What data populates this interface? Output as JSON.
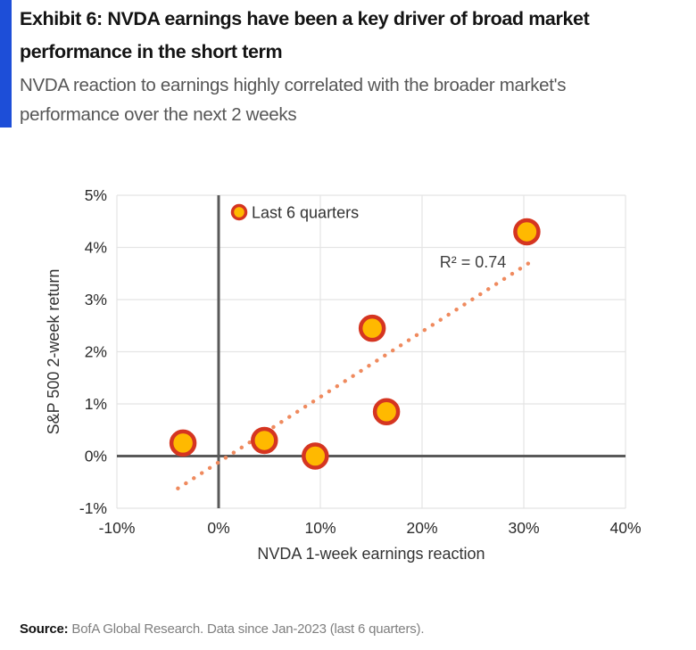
{
  "header": {
    "title_line1": "Exhibit 6: NVDA earnings have been a key driver of broad market",
    "title_line2": "performance in the short term",
    "subtitle_line1": "NVDA reaction to earnings highly correlated with the broader market's",
    "subtitle_line2": "performance over the next 2 weeks"
  },
  "chart_data": {
    "type": "scatter",
    "title": "",
    "xlabel": "NVDA 1-week earnings reaction",
    "ylabel": "S&P 500 2-week return",
    "xlim": [
      -10,
      40
    ],
    "ylim": [
      -1,
      5
    ],
    "x_tick_values": [
      -10,
      0,
      10,
      20,
      30,
      40
    ],
    "x_tick_labels": [
      "-10%",
      "0%",
      "10%",
      "20%",
      "30%",
      "40%"
    ],
    "y_tick_values": [
      5,
      4,
      3,
      2,
      1,
      0,
      -1
    ],
    "y_tick_labels": [
      "5%",
      "4%",
      "3%",
      "2%",
      "1%",
      "0%",
      "-1%"
    ],
    "grid": true,
    "legend": {
      "label": "Last 6 quarters",
      "position": "top-left-inside"
    },
    "series": [
      {
        "name": "Last 6 quarters",
        "points": [
          {
            "x": -3.5,
            "y": 0.25
          },
          {
            "x": 4.5,
            "y": 0.3
          },
          {
            "x": 9.5,
            "y": 0.0
          },
          {
            "x": 15.1,
            "y": 2.45
          },
          {
            "x": 16.5,
            "y": 0.85
          },
          {
            "x": 30.3,
            "y": 4.3
          }
        ]
      }
    ],
    "trendline": {
      "x1": -4,
      "y1": -0.62,
      "x2": 30.5,
      "y2": 3.7,
      "style": "dotted"
    },
    "annotation": {
      "text": "R² = 0.74",
      "x": 25.0,
      "y": 3.72
    }
  },
  "footer": {
    "source_label": "Source:",
    "source_text": " BofA Global Research. Data since Jan-2023 (last 6 quarters)."
  },
  "colors": {
    "accent_blue": "#1d4ed8",
    "marker_fill": "#ffb900",
    "marker_stroke": "#d53521",
    "trendline": "#ef8a5e",
    "axis_line": "#595959",
    "gridline": "#e4e4e4",
    "tick_text": "#2b2b2b",
    "axis_title_text": "#333333",
    "legend_text": "#333333",
    "annotation_text": "#404040"
  }
}
